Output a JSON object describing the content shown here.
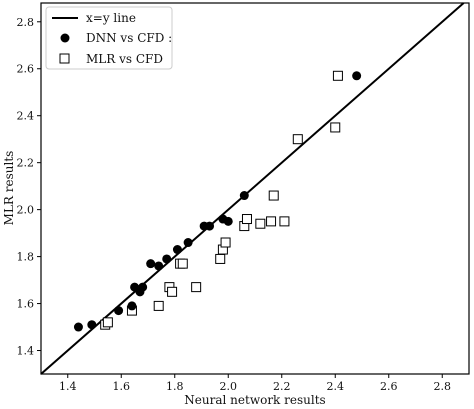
{
  "chart_data": {
    "type": "scatter",
    "title": "",
    "xlabel": "Neural network results",
    "ylabel": "MLR results",
    "xlim": [
      1.3,
      2.9
    ],
    "ylim": [
      1.3,
      2.88
    ],
    "xticks": [
      "1.4",
      "1.6",
      "1.8",
      "2.0",
      "2.2",
      "2.4",
      "2.6",
      "2.8"
    ],
    "yticks": [
      "1.4",
      "1.6",
      "1.8",
      "2.0",
      "2.2",
      "2.4",
      "2.6",
      "2.8"
    ],
    "grid": false,
    "legend_position": "top-left",
    "reference_line": {
      "name": "x=y line",
      "color": "#000000"
    },
    "series": [
      {
        "name": "DNN vs CFD :",
        "marker": "filled-circle",
        "color": "#000000",
        "points": [
          {
            "x": 1.44,
            "y": 1.5
          },
          {
            "x": 1.49,
            "y": 1.51
          },
          {
            "x": 1.59,
            "y": 1.57
          },
          {
            "x": 1.64,
            "y": 1.59
          },
          {
            "x": 1.65,
            "y": 1.67
          },
          {
            "x": 1.67,
            "y": 1.65
          },
          {
            "x": 1.68,
            "y": 1.67
          },
          {
            "x": 1.71,
            "y": 1.77
          },
          {
            "x": 1.74,
            "y": 1.76
          },
          {
            "x": 1.77,
            "y": 1.79
          },
          {
            "x": 1.81,
            "y": 1.83
          },
          {
            "x": 1.85,
            "y": 1.86
          },
          {
            "x": 1.91,
            "y": 1.93
          },
          {
            "x": 1.93,
            "y": 1.93
          },
          {
            "x": 1.98,
            "y": 1.96
          },
          {
            "x": 2.0,
            "y": 1.95
          },
          {
            "x": 2.06,
            "y": 2.06
          },
          {
            "x": 2.48,
            "y": 2.57
          }
        ]
      },
      {
        "name": "MLR vs CFD",
        "marker": "open-square",
        "color": "#000000",
        "points": [
          {
            "x": 1.54,
            "y": 1.51
          },
          {
            "x": 1.55,
            "y": 1.52
          },
          {
            "x": 1.64,
            "y": 1.57
          },
          {
            "x": 1.74,
            "y": 1.59
          },
          {
            "x": 1.78,
            "y": 1.67
          },
          {
            "x": 1.79,
            "y": 1.65
          },
          {
            "x": 1.82,
            "y": 1.77
          },
          {
            "x": 1.83,
            "y": 1.77
          },
          {
            "x": 1.88,
            "y": 1.67
          },
          {
            "x": 1.97,
            "y": 1.79
          },
          {
            "x": 1.98,
            "y": 1.83
          },
          {
            "x": 1.99,
            "y": 1.86
          },
          {
            "x": 2.06,
            "y": 1.93
          },
          {
            "x": 2.07,
            "y": 1.96
          },
          {
            "x": 2.12,
            "y": 1.94
          },
          {
            "x": 2.16,
            "y": 1.95
          },
          {
            "x": 2.17,
            "y": 2.06
          },
          {
            "x": 2.21,
            "y": 1.95
          },
          {
            "x": 2.26,
            "y": 2.3
          },
          {
            "x": 2.4,
            "y": 2.35
          },
          {
            "x": 2.41,
            "y": 2.57
          }
        ]
      }
    ]
  }
}
